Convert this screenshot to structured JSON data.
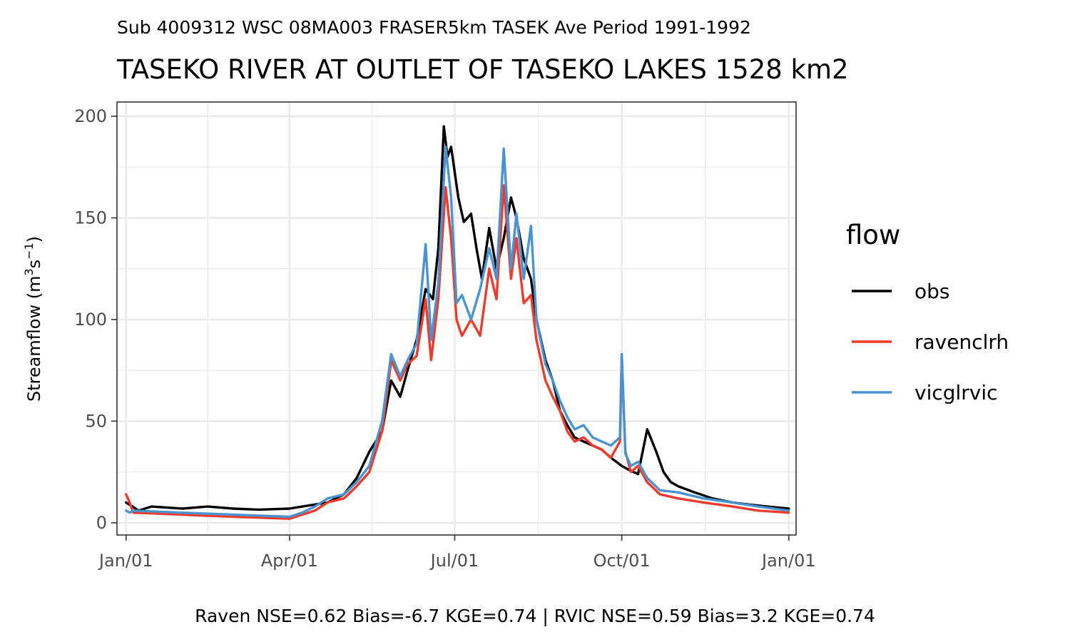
{
  "chart_data": {
    "type": "line",
    "subtitle": "Sub 4009312 WSC 08MA003 FRASER5km TASEK Ave Period 1991-1992",
    "title": "TASEKO RIVER AT OUTLET OF TASEKO LAKES 1528 km2",
    "ylabel": "Streamflow (m3s-1)",
    "xlabel": "",
    "ylim": [
      -6,
      207
    ],
    "xlim": [
      "Dec/27",
      "Jan/05"
    ],
    "yticks": [
      0,
      50,
      100,
      150,
      200
    ],
    "xticks": [
      "Jan/01",
      "Apr/01",
      "Jul/01",
      "Oct/01",
      "Jan/01"
    ],
    "grid": true,
    "legend": {
      "title": "flow",
      "position": "right"
    },
    "footer": "Raven NSE=0.62 Bias=-6.7 KGE=0.74 | RVIC NSE=0.59 Bias=3.2 KGE=0.74",
    "series": [
      {
        "name": "obs",
        "color": "#000000",
        "x": [
          "Jan/01",
          "Jan/08",
          "Jan/15",
          "Feb/01",
          "Feb/15",
          "Mar/01",
          "Mar/15",
          "Apr/01",
          "Apr/08",
          "Apr/15",
          "Apr/22",
          "May/01",
          "May/08",
          "May/15",
          "May/22",
          "May/27",
          "Jun/01",
          "Jun/05",
          "Jun/10",
          "Jun/15",
          "Jun/19",
          "Jun/22",
          "Jun/25",
          "Jun/27",
          "Jun/29",
          "Jul/03",
          "Jul/06",
          "Jul/10",
          "Jul/13",
          "Jul/16",
          "Jul/20",
          "Jul/24",
          "Jul/28",
          "Aug/01",
          "Aug/04",
          "Aug/08",
          "Aug/12",
          "Aug/15",
          "Aug/20",
          "Aug/24",
          "Aug/28",
          "Sep/01",
          "Sep/05",
          "Sep/10",
          "Sep/15",
          "Sep/20",
          "Sep/25",
          "Oct/01",
          "Oct/05",
          "Oct/10",
          "Oct/15",
          "Oct/20",
          "Oct/24",
          "Oct/28",
          "Nov/01",
          "Nov/10",
          "Nov/20",
          "Dec/01",
          "Dec/10",
          "Dec/20",
          "Jan/01"
        ],
        "y": [
          10,
          6,
          8,
          7,
          8,
          7,
          6.5,
          7,
          8,
          9,
          10,
          14,
          22,
          35,
          45,
          70,
          62,
          75,
          90,
          115,
          110,
          135,
          195,
          180,
          185,
          160,
          148,
          152,
          135,
          120,
          145,
          125,
          140,
          160,
          150,
          130,
          120,
          100,
          80,
          70,
          55,
          48,
          42,
          40,
          38,
          36,
          32,
          28,
          26,
          24,
          46,
          35,
          25,
          20,
          18,
          15,
          12,
          10,
          9,
          8,
          7
        ]
      },
      {
        "name": "ravenclrh",
        "color": "#ef3b2c",
        "x": [
          "Jan/01",
          "Jan/03",
          "Jan/05",
          "Feb/01",
          "Mar/01",
          "Apr/01",
          "Apr/08",
          "Apr/15",
          "Apr/22",
          "May/01",
          "May/08",
          "May/15",
          "May/22",
          "May/27",
          "Jun/01",
          "Jun/05",
          "Jun/10",
          "Jun/15",
          "Jun/18",
          "Jun/22",
          "Jun/26",
          "Jun/29",
          "Jul/02",
          "Jul/05",
          "Jul/10",
          "Jul/15",
          "Jul/20",
          "Jul/24",
          "Jul/28",
          "Aug/01",
          "Aug/04",
          "Aug/08",
          "Aug/12",
          "Aug/15",
          "Aug/20",
          "Aug/24",
          "Aug/28",
          "Sep/01",
          "Sep/05",
          "Sep/10",
          "Sep/15",
          "Sep/20",
          "Sep/25",
          "Sep/30",
          "Oct/01",
          "Oct/03",
          "Oct/06",
          "Oct/10",
          "Oct/15",
          "Oct/22",
          "Nov/01",
          "Nov/15",
          "Dec/01",
          "Dec/15",
          "Jan/01"
        ],
        "y": [
          14,
          10,
          5,
          4,
          3,
          2,
          4,
          6,
          10,
          12,
          18,
          25,
          45,
          80,
          70,
          78,
          82,
          110,
          80,
          110,
          165,
          140,
          100,
          92,
          100,
          92,
          125,
          110,
          166,
          120,
          140,
          108,
          112,
          90,
          70,
          62,
          55,
          45,
          40,
          42,
          38,
          36,
          32,
          40,
          82,
          35,
          25,
          28,
          20,
          14,
          12,
          10,
          8,
          6,
          5
        ]
      },
      {
        "name": "vicglrvic",
        "color": "#4a93d0",
        "x": [
          "Jan/01",
          "Jan/03",
          "Jan/05",
          "Feb/01",
          "Mar/01",
          "Apr/01",
          "Apr/08",
          "Apr/15",
          "Apr/22",
          "May/01",
          "May/08",
          "May/15",
          "May/22",
          "May/27",
          "Jun/01",
          "Jun/05",
          "Jun/10",
          "Jun/15",
          "Jun/18",
          "Jun/22",
          "Jun/26",
          "Jun/29",
          "Jul/02",
          "Jul/05",
          "Jul/10",
          "Jul/15",
          "Jul/20",
          "Jul/24",
          "Jul/28",
          "Aug/01",
          "Aug/04",
          "Aug/08",
          "Aug/12",
          "Aug/15",
          "Aug/20",
          "Aug/24",
          "Aug/28",
          "Sep/01",
          "Sep/05",
          "Sep/10",
          "Sep/15",
          "Sep/20",
          "Sep/25",
          "Sep/30",
          "Oct/01",
          "Oct/03",
          "Oct/06",
          "Oct/10",
          "Oct/15",
          "Oct/22",
          "Nov/01",
          "Nov/15",
          "Dec/01",
          "Dec/15",
          "Jan/01"
        ],
        "y": [
          6,
          5,
          6,
          5,
          4,
          3,
          5,
          8,
          12,
          14,
          20,
          28,
          50,
          83,
          72,
          80,
          88,
          137,
          90,
          118,
          185,
          160,
          108,
          112,
          100,
          115,
          135,
          120,
          184,
          125,
          152,
          120,
          146,
          100,
          78,
          70,
          60,
          52,
          46,
          48,
          42,
          40,
          38,
          42,
          83,
          34,
          28,
          30,
          22,
          16,
          15,
          12,
          10,
          8,
          6
        ]
      }
    ]
  }
}
